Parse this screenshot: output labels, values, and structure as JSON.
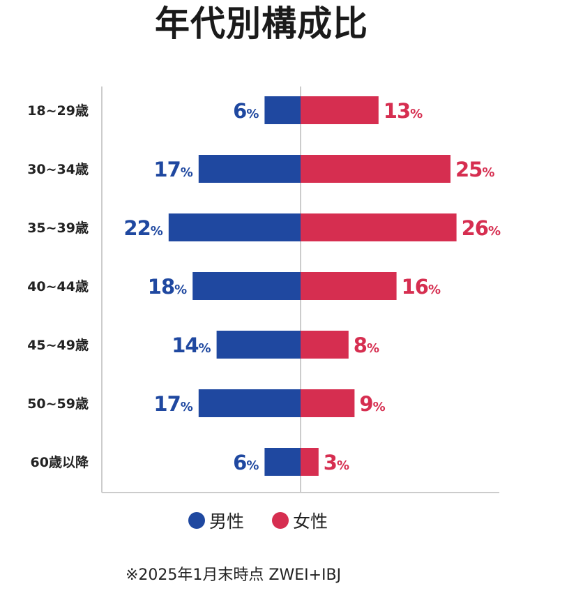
{
  "chart_data": {
    "type": "bar",
    "orientation": "horizontal-diverging",
    "title": "年代別構成比",
    "categories": [
      "18~29歳",
      "30~34歳",
      "35~39歳",
      "40~44歳",
      "45~49歳",
      "50~59歳",
      "60歳以降"
    ],
    "series": [
      {
        "name": "男性",
        "color": "#1f48a0",
        "values": [
          6,
          17,
          22,
          18,
          14,
          17,
          6
        ]
      },
      {
        "name": "女性",
        "color": "#d62e50",
        "values": [
          13,
          25,
          26,
          16,
          8,
          9,
          3
        ]
      }
    ],
    "unit": "%",
    "xlim": [
      -30,
      30
    ],
    "grid": false,
    "legend_position": "bottom"
  },
  "footnote": "※2025年1月末時点 ZWEI+IBJ"
}
